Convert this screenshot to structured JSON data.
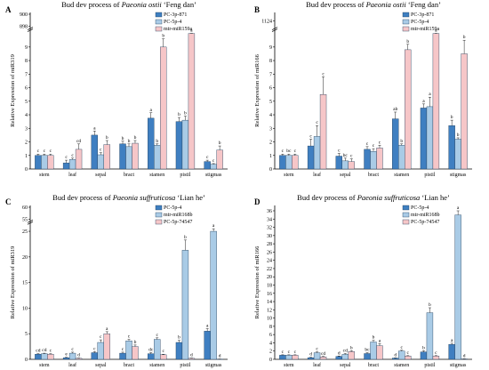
{
  "colors": {
    "dark": "#3f7fc1",
    "mid": "#a9cbe6",
    "pink": "#f6c6c8",
    "edge": "#1e3c5a"
  },
  "chart_data": [
    {
      "type": "bar",
      "panel": "A",
      "title": "Bud dev process of Paeonia ostii 'Feng dan'",
      "title_parts": {
        "pre": "Bud dev process of ",
        "italic": "Paeonia ostii",
        "post": " ‘Feng dan’"
      },
      "ylabel": "Relative Expression of miR319",
      "categories": [
        "stem",
        "leaf",
        "sepal",
        "bract",
        "stamen",
        "pistil",
        "stigmas"
      ],
      "ylim": [
        0,
        10
      ],
      "yticks": [
        0,
        1,
        2,
        3,
        4,
        5,
        6,
        7,
        8,
        9
      ],
      "break_ticks": [
        "898",
        "900"
      ],
      "series": [
        {
          "name": "PC-3p-871",
          "color": "dark",
          "values": [
            1.0,
            0.45,
            2.5,
            1.85,
            3.75,
            3.5,
            0.55
          ],
          "err": [
            0.1,
            0.2,
            0.3,
            0.2,
            0.4,
            0.3,
            0.1
          ],
          "letters": [
            "c",
            "c",
            "a",
            "b",
            "a",
            "b",
            "c"
          ]
        },
        {
          "name": "PC-5p-4",
          "color": "mid",
          "values": [
            1.0,
            0.7,
            1.05,
            1.65,
            1.75,
            3.6,
            0.35
          ],
          "err": [
            0.1,
            0.1,
            0.15,
            0.2,
            0.1,
            0.3,
            0.05
          ],
          "letters": [
            "c",
            "c",
            "c",
            "b",
            "b",
            "b",
            "c"
          ]
        },
        {
          "name": "mtr-miR159a",
          "color": "pink",
          "values": [
            1.0,
            1.45,
            1.8,
            1.9,
            9.0,
            10.0,
            1.4
          ],
          "err": [
            0.1,
            0.4,
            0.3,
            0.2,
            0.6,
            0.3,
            0.3
          ],
          "letters": [
            "c",
            "cd",
            "b",
            "b",
            "b",
            "a",
            "b"
          ]
        }
      ]
    },
    {
      "type": "bar",
      "panel": "B",
      "title": "Bud dev process of Paeonia ostii 'Feng dan'",
      "title_parts": {
        "pre": "Bud dev process of ",
        "italic": "Paeonia ostii",
        "post": " ‘Feng dan’"
      },
      "ylabel": "Relative Expression of miR166",
      "categories": [
        "stem",
        "leaf",
        "sepal",
        "bract",
        "stamen",
        "pistil",
        "stigmas"
      ],
      "ylim": [
        0,
        10
      ],
      "yticks": [
        0,
        1,
        2,
        3,
        4,
        5,
        6,
        7,
        8,
        9
      ],
      "break_ticks": [
        "1124"
      ],
      "series": [
        {
          "name": "PC-3p-871",
          "color": "dark",
          "values": [
            1.0,
            1.7,
            0.95,
            1.45,
            3.7,
            4.5,
            3.2
          ],
          "err": [
            0.1,
            0.5,
            0.2,
            0.2,
            0.5,
            0.3,
            0.4
          ],
          "letters": [
            "c",
            "c",
            "c",
            "c",
            "ab",
            "a",
            "b"
          ]
        },
        {
          "name": "PC-5p-4",
          "color": "mid",
          "values": [
            1.0,
            2.4,
            0.6,
            1.3,
            1.75,
            4.6,
            2.2
          ],
          "err": [
            0.1,
            0.8,
            0.2,
            0.2,
            0.1,
            0.7,
            0.1
          ],
          "letters": [
            "bc",
            "c",
            "bc",
            "c",
            "b",
            "a",
            "b"
          ]
        },
        {
          "name": "mtr-miR159a",
          "color": "pink",
          "values": [
            1.0,
            5.5,
            0.55,
            1.55,
            8.8,
            10.0,
            8.5
          ],
          "err": [
            0.1,
            1.3,
            0.2,
            0.2,
            0.4,
            0.3,
            1.0
          ],
          "letters": [
            "c",
            "c",
            "c",
            "c",
            "b",
            "a",
            "b"
          ]
        }
      ]
    },
    {
      "type": "bar",
      "panel": "C",
      "title": "Bud dev process of Paeonia suffruticosa 'Lian he'",
      "title_parts": {
        "pre": "Bud dev process of ",
        "italic": "Paeonia suffruticosa",
        "post": " ‘Lian he’"
      },
      "ylabel": "Relative Expression of miR319",
      "categories": [
        "stem",
        "leaf",
        "sepal",
        "bract",
        "stamen",
        "pistil",
        "stigmas"
      ],
      "ylim": [
        0,
        26
      ],
      "yticks": [
        0,
        5,
        10,
        15,
        20,
        25
      ],
      "break_ticks": [
        "55",
        "60"
      ],
      "series": [
        {
          "name": "PC-5p-4",
          "color": "dark",
          "values": [
            1.0,
            0.3,
            1.3,
            1.2,
            1.1,
            3.3,
            5.5
          ],
          "err": [
            0.1,
            0.1,
            0.2,
            0.2,
            0.2,
            0.4,
            0.5
          ],
          "letters": [
            "cd",
            "e",
            "c",
            "c",
            "dc",
            "b",
            "a"
          ]
        },
        {
          "name": "mtr-miR168b",
          "color": "mid",
          "values": [
            1.1,
            1.2,
            3.3,
            3.6,
            3.9,
            21.3,
            25.0
          ],
          "err": [
            0.1,
            0.2,
            0.5,
            0.3,
            0.3,
            2.0,
            0.5
          ],
          "letters": [
            "cd",
            "c",
            "c",
            "c",
            "c",
            "b",
            "a"
          ]
        },
        {
          "name": "PC-5p-74547",
          "color": "pink",
          "values": [
            1.0,
            0.2,
            5.0,
            2.5,
            0.9,
            0.2,
            0.05
          ],
          "err": [
            0.1,
            0.05,
            0.4,
            0.3,
            0.1,
            0.05,
            0.02
          ],
          "letters": [
            "c",
            "d",
            "a",
            "b",
            "c",
            "d",
            "d"
          ]
        }
      ]
    },
    {
      "type": "bar",
      "panel": "D",
      "title": "Bud dev process of Paeonia suffruticosa 'Lian he'",
      "title_parts": {
        "pre": "Bud dev process of ",
        "italic": "Paeonia suffruticosa",
        "post": " ‘Lian he’"
      },
      "ylabel": "Relative Expression of miR166",
      "categories": [
        "stem",
        "leaf",
        "sepal",
        "bract",
        "stamen",
        "pistil",
        "stigmas"
      ],
      "ylim": [
        0,
        36
      ],
      "yticks": [
        0,
        2,
        4,
        6,
        8,
        10,
        12,
        14,
        16,
        18,
        20,
        22,
        24,
        26,
        28,
        30,
        32,
        34,
        36,
        38
      ],
      "series": [
        {
          "name": "PC-5p-4",
          "color": "dark",
          "values": [
            1.0,
            0.4,
            0.7,
            1.4,
            0.3,
            1.8,
            3.6
          ],
          "err": [
            0.1,
            0.1,
            0.1,
            0.2,
            0.05,
            0.3,
            0.3
          ],
          "letters": [
            "c",
            "d",
            "d",
            "bc",
            "d",
            "b",
            "a"
          ]
        },
        {
          "name": "mtr-miR168b",
          "color": "mid",
          "values": [
            1.0,
            1.6,
            1.2,
            4.2,
            2.0,
            11.3,
            35.0
          ],
          "err": [
            0.1,
            0.2,
            0.2,
            0.4,
            0.2,
            1.2,
            1.0
          ],
          "letters": [
            "c",
            "c",
            "cd",
            "b",
            "c",
            "b",
            "a"
          ]
        },
        {
          "name": "PC-5p-74547",
          "color": "pink",
          "values": [
            1.0,
            0.6,
            1.9,
            3.3,
            0.8,
            0.8,
            0.1
          ],
          "err": [
            0.1,
            0.1,
            0.2,
            0.5,
            0.1,
            0.1,
            0.02
          ],
          "letters": [
            "c",
            "cd",
            "b",
            "a",
            "c",
            "c",
            "d"
          ]
        }
      ]
    }
  ],
  "panel_labels": [
    "A",
    "B",
    "C",
    "D"
  ]
}
